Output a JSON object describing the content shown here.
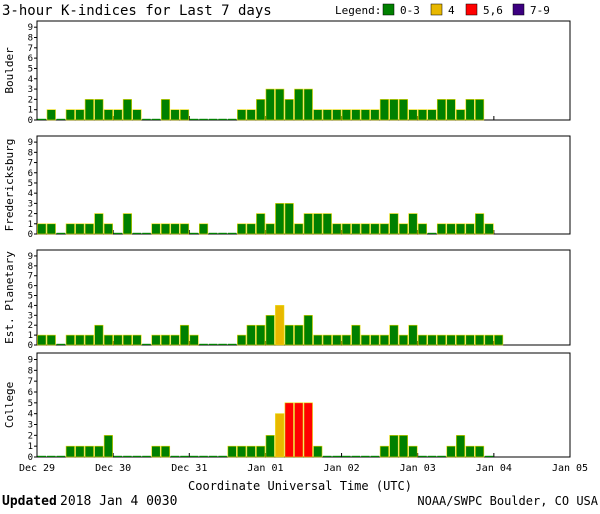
{
  "chart_data": {
    "type": "bar",
    "title": "3-hour K-indices for Last 7 days",
    "legend": {
      "label": "Legend:",
      "position": "top-right",
      "items": [
        {
          "label": "0-3",
          "color": "#008000"
        },
        {
          "label": "4",
          "color": "#e8b800"
        },
        {
          "label": "5,6",
          "color": "#ff0000"
        },
        {
          "label": "7-9",
          "color": "#3c0080"
        }
      ]
    },
    "ylim": [
      0,
      9
    ],
    "yticks": [
      "0",
      "1",
      "2",
      "3",
      "4",
      "5",
      "6",
      "7",
      "8",
      "9"
    ],
    "xlabel": "Coordinate Universal Time (UTC)",
    "xticks": [
      "Dec 29",
      "Dec 30",
      "Dec 31",
      "Jan 01",
      "Jan 02",
      "Jan 03",
      "Jan 04",
      "Jan 05"
    ],
    "bars_per_day": 8,
    "total_bins": 56,
    "series": [
      {
        "name": "Boulder",
        "values": [
          0,
          1,
          0,
          1,
          1,
          2,
          2,
          1,
          1,
          2,
          1,
          0,
          0,
          2,
          1,
          1,
          0,
          0,
          0,
          0,
          0,
          1,
          1,
          2,
          3,
          3,
          2,
          3,
          3,
          1,
          1,
          1,
          1,
          1,
          1,
          1,
          2,
          2,
          2,
          1,
          1,
          1,
          2,
          2,
          1,
          2,
          2
        ]
      },
      {
        "name": "Fredericksburg",
        "values": [
          1,
          1,
          0,
          1,
          1,
          1,
          2,
          1,
          0,
          2,
          0,
          0,
          1,
          1,
          1,
          1,
          0,
          1,
          0,
          0,
          0,
          1,
          1,
          2,
          1,
          3,
          3,
          1,
          2,
          2,
          2,
          1,
          1,
          1,
          1,
          1,
          1,
          2,
          1,
          2,
          1,
          0,
          1,
          1,
          1,
          1,
          2,
          1
        ]
      },
      {
        "name": "Est. Planetary",
        "values": [
          1,
          1,
          0,
          1,
          1,
          1,
          2,
          1,
          1,
          1,
          1,
          0,
          1,
          1,
          1,
          2,
          1,
          0,
          0,
          0,
          0,
          1,
          2,
          2,
          3,
          4,
          2,
          2,
          3,
          1,
          1,
          1,
          1,
          2,
          1,
          1,
          1,
          2,
          1,
          2,
          1,
          1,
          1,
          1,
          1,
          1,
          1,
          1,
          1
        ]
      },
      {
        "name": "College",
        "values": [
          0,
          0,
          0,
          1,
          1,
          1,
          1,
          2,
          0,
          0,
          0,
          0,
          1,
          1,
          0,
          0,
          0,
          0,
          0,
          0,
          1,
          1,
          1,
          1,
          2,
          4,
          5,
          5,
          5,
          1,
          0,
          0,
          0,
          0,
          0,
          0,
          1,
          2,
          2,
          1,
          0,
          0,
          0,
          1,
          2,
          1,
          1,
          0
        ]
      }
    ],
    "grid": false
  },
  "footer": {
    "updated_label": "Updated",
    "updated_value": " 2018 Jan  4 0030",
    "source": "NOAA/SWPC Boulder, CO USA"
  }
}
